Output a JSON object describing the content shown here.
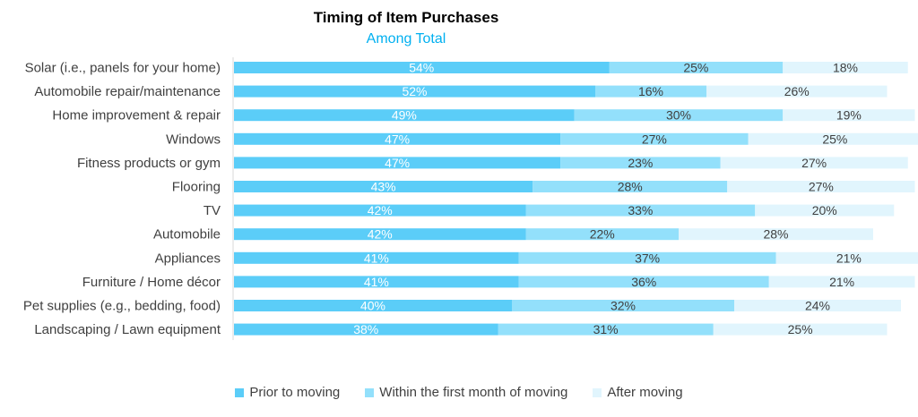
{
  "chart_data": {
    "type": "bar",
    "orientation": "horizontal",
    "stacked": true,
    "title": "Timing of Item Purchases",
    "subtitle": "Among Total",
    "categories": [
      "Solar (i.e., panels for your home)",
      "Automobile repair/maintenance",
      "Home improvement & repair ",
      "Windows",
      "Fitness products or gym",
      "Flooring",
      "TV",
      "Automobile",
      "Appliances",
      "Furniture / Home décor",
      "Pet supplies (e.g., bedding, food)",
      "Landscaping / Lawn equipment"
    ],
    "series": [
      {
        "name": "Prior to moving",
        "color": "#5bcdf8",
        "label_color": "#ffffff",
        "values": [
          54,
          52,
          49,
          47,
          47,
          43,
          42,
          42,
          41,
          41,
          40,
          38
        ]
      },
      {
        "name": "Within the first month of moving",
        "color": "#93e0fb",
        "label_color": "#404040",
        "values": [
          25,
          16,
          30,
          27,
          23,
          28,
          33,
          22,
          37,
          36,
          32,
          31
        ]
      },
      {
        "name": "After moving",
        "color": "#e1f5fd",
        "label_color": "#404040",
        "values": [
          18,
          26,
          19,
          25,
          27,
          27,
          20,
          28,
          21,
          21,
          24,
          25
        ]
      }
    ],
    "label_suffix": "%",
    "legend_position": "bottom",
    "grid": false
  }
}
